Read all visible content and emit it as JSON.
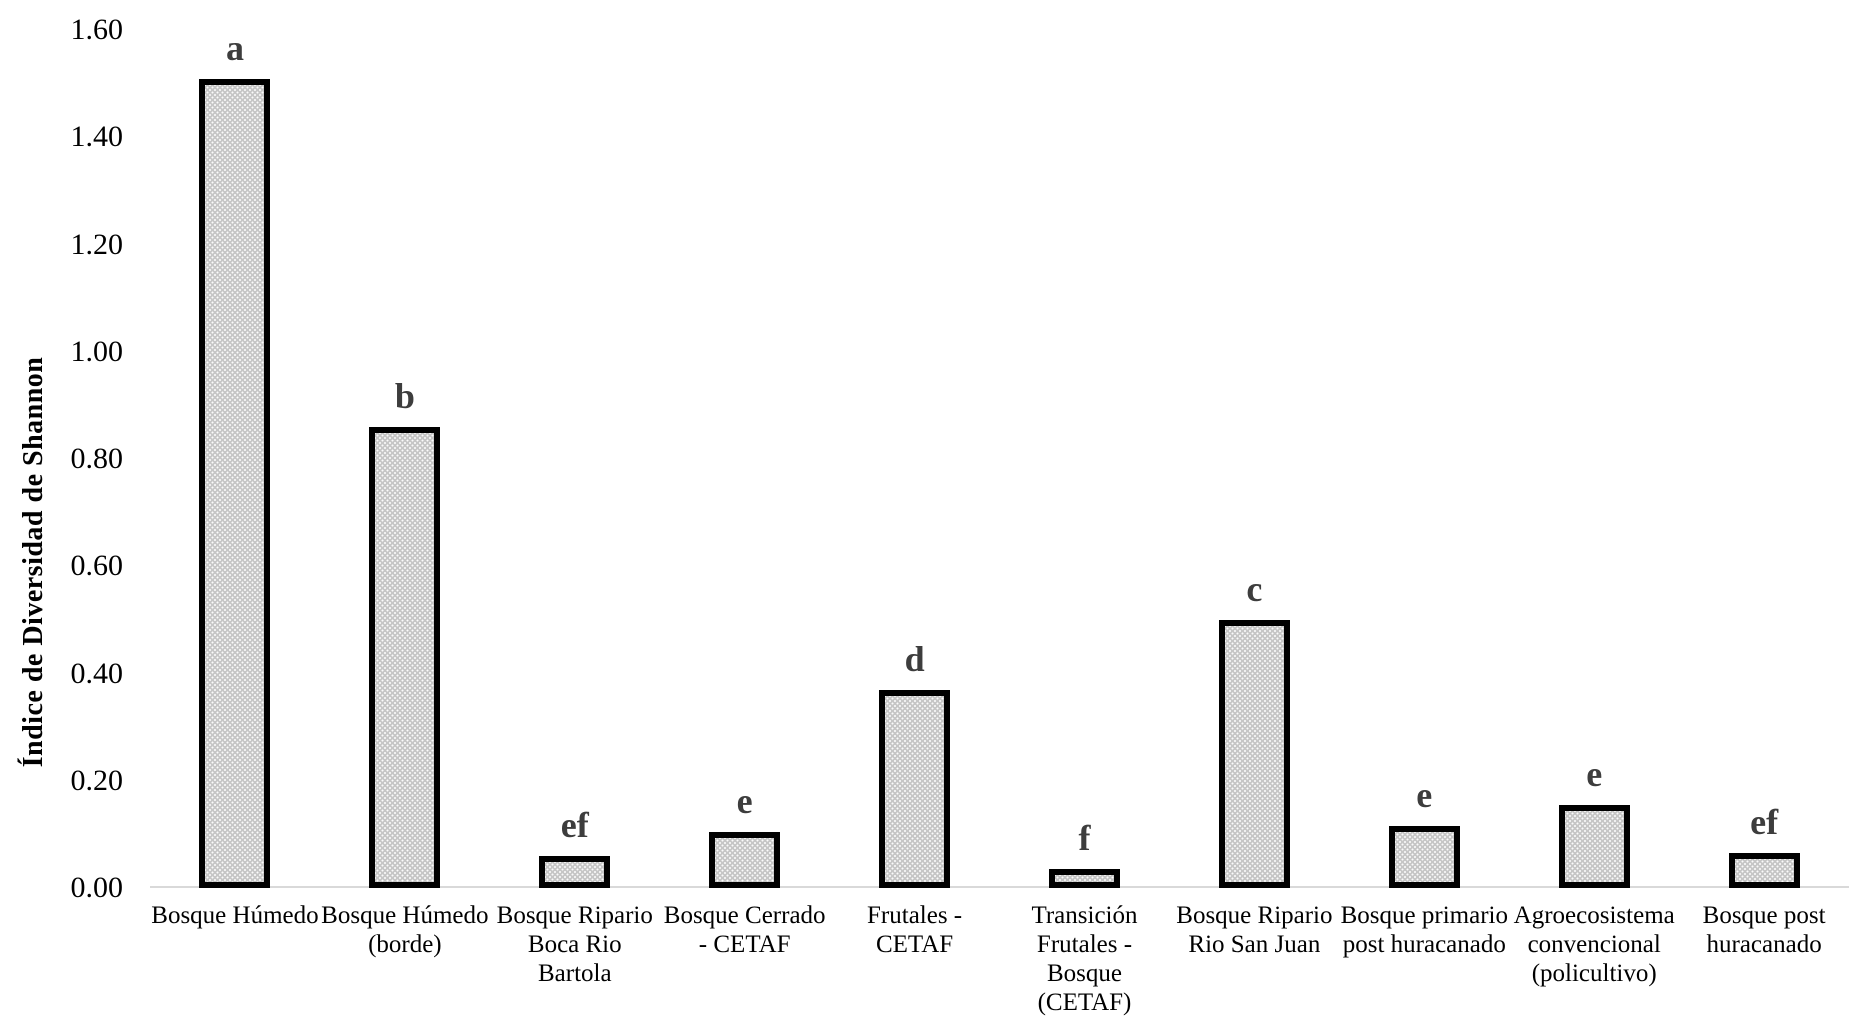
{
  "chart": {
    "y_axis_title": "Índice de Diversidad de Shannon"
  },
  "chart_data": {
    "type": "bar",
    "title": "",
    "xlabel": "",
    "ylabel": "Índice de Diversidad de Shannon",
    "ylim": [
      0,
      1.6
    ],
    "yticks": [
      "0.00",
      "0.20",
      "0.40",
      "0.60",
      "0.80",
      "1.00",
      "1.20",
      "1.40",
      "1.60"
    ],
    "grid": false,
    "legend": "none",
    "bar_fill_color": "#c6c6c6",
    "bar_border_color": "#000000",
    "significance_letter_color": "#3d3d3d",
    "axis_line_color": "#d9d9d9",
    "categories": [
      "Bosque Húmedo",
      "Bosque Húmedo (borde)",
      "Bosque Ripario Boca Rio Bartola",
      "Bosque Cerrado - CETAF",
      "Frutales - CETAF",
      "Transición Frutales - Bosque (CETAF)",
      "Bosque Ripario Rio San Juan",
      "Bosque primario post huracanado",
      "Agroecosistema convencional (policultivo)",
      "Bosque post huracanado"
    ],
    "category_label_lines": [
      "Bosque Húmedo",
      "Bosque Húmedo\n(borde)",
      "Bosque Ripario\nBoca Rio\nBartola",
      "Bosque Cerrado\n- CETAF",
      "Frutales -\nCETAF",
      "Transición\nFrutales -\nBosque\n(CETAF)",
      "Bosque Ripario\nRio San Juan",
      "Bosque primario\npost huracanado",
      "Agroecosistema\nconvencional\n(policultivo)",
      "Bosque post\nhuracanado"
    ],
    "values": [
      1.51,
      0.86,
      0.06,
      0.105,
      0.37,
      0.035,
      0.5,
      0.115,
      0.155,
      0.065
    ],
    "significance_letters": [
      "a",
      "b",
      "ef",
      "e",
      "d",
      "f",
      "c",
      "e",
      "e",
      "ef"
    ]
  }
}
